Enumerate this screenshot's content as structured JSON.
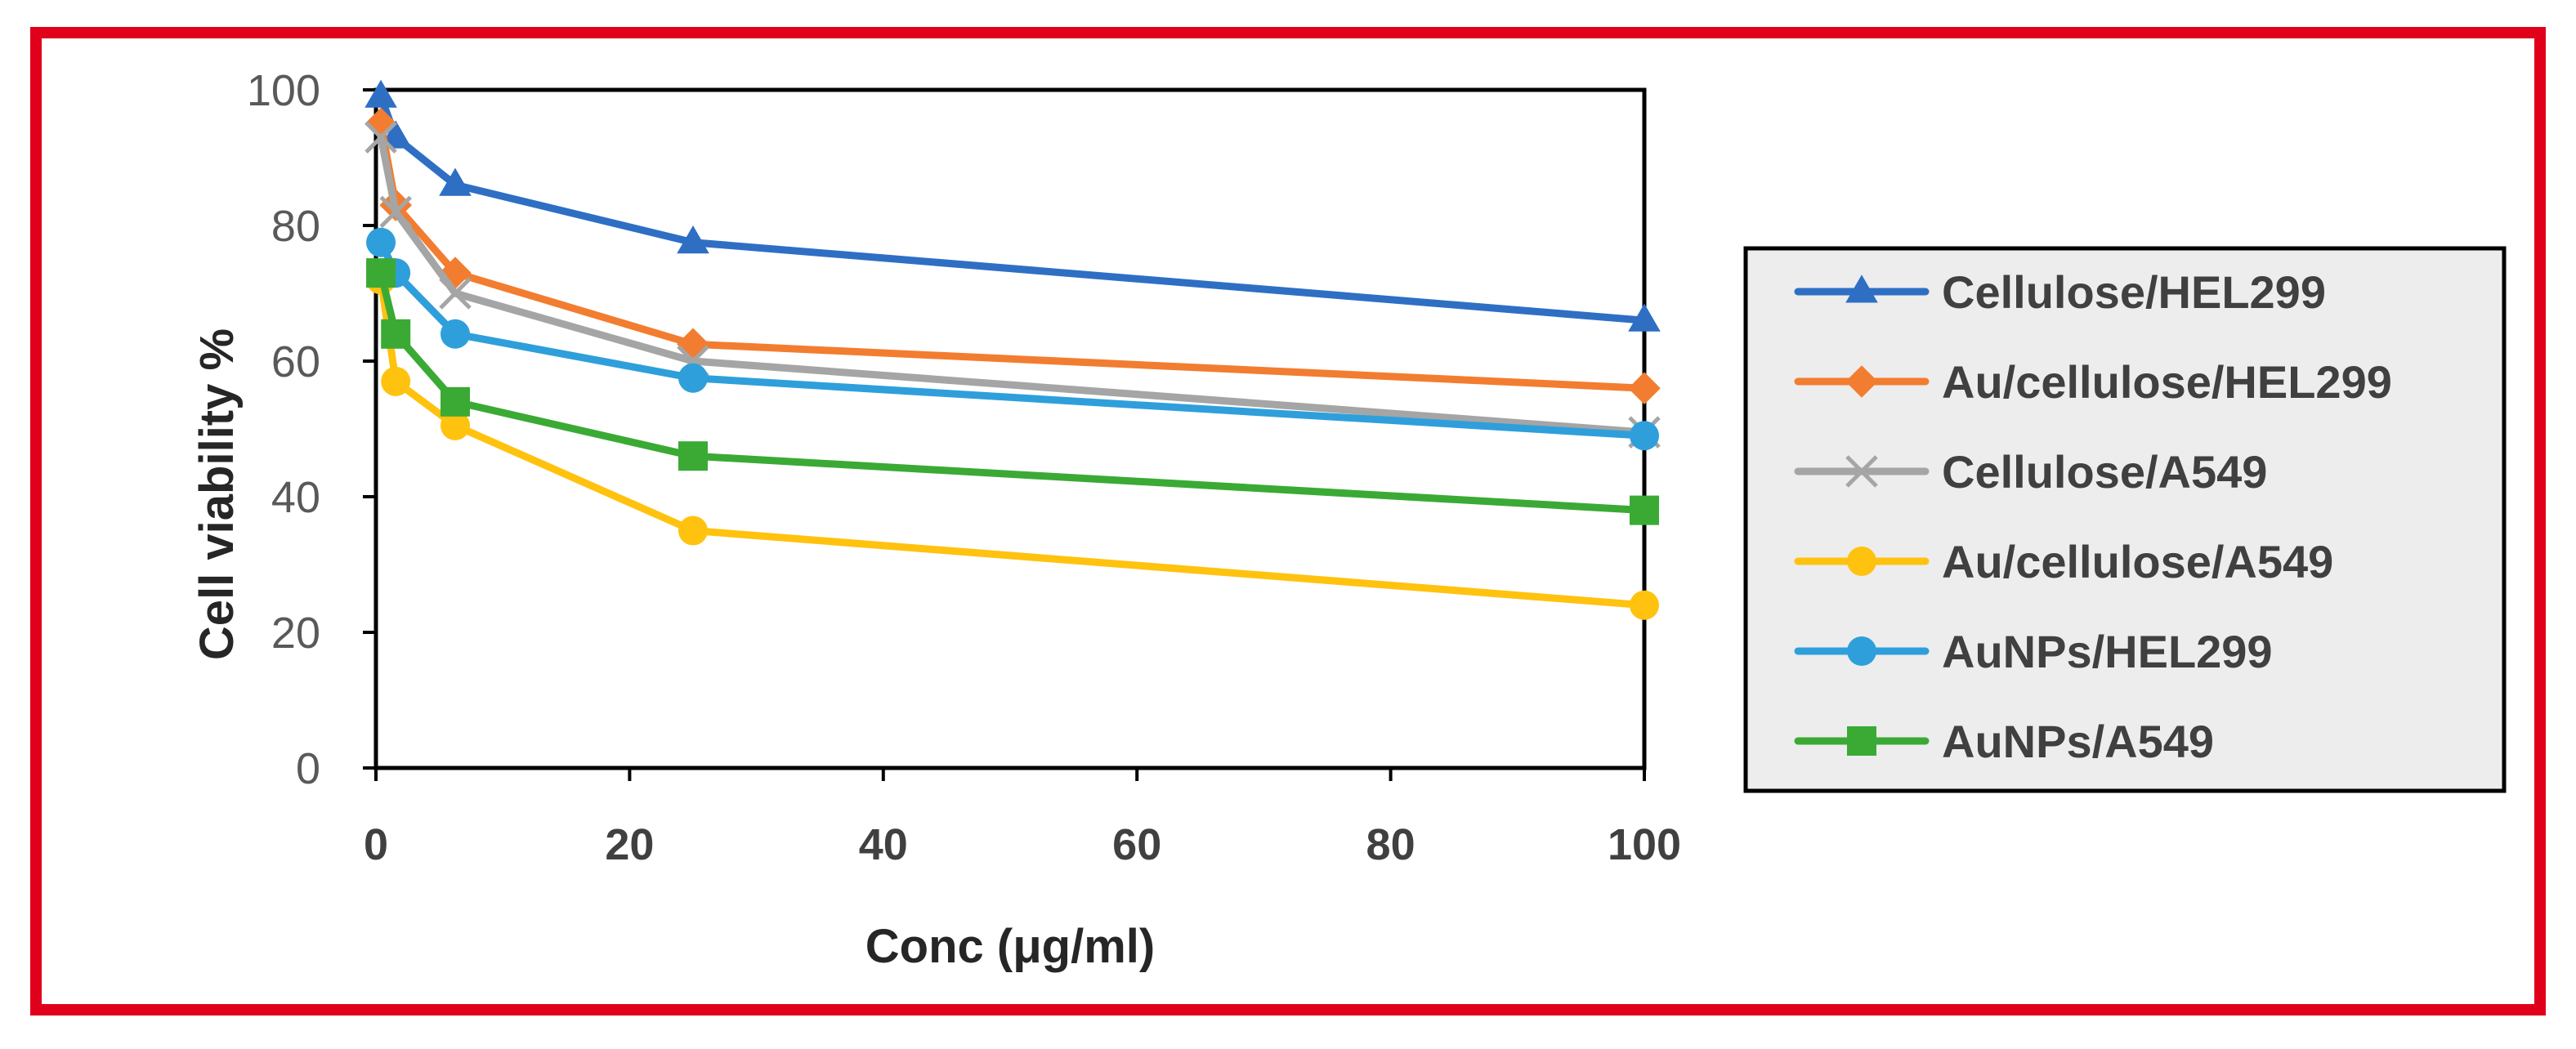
{
  "chart_data": {
    "type": "line",
    "title": "",
    "xlabel": "Conc (μg/ml)",
    "ylabel": "Cell viability %",
    "xlim": [
      0,
      100
    ],
    "ylim": [
      0,
      100
    ],
    "xticks": [
      0,
      20,
      40,
      60,
      80,
      100
    ],
    "yticks": [
      0,
      20,
      40,
      60,
      80,
      100
    ],
    "grid": false,
    "legend_position": "right",
    "x": [
      0.39,
      1.56,
      6.25,
      25,
      100
    ],
    "series": [
      {
        "name": "Cellulose/HEL299",
        "color": "#2e6fc4",
        "marker": "triangle",
        "values": [
          99,
          93,
          86,
          77.5,
          66
        ]
      },
      {
        "name": "Au/cellulose/HEL299",
        "color": "#f27d30",
        "marker": "diamond",
        "values": [
          95,
          83,
          73,
          62.5,
          56
        ]
      },
      {
        "name": "Cellulose/A549",
        "color": "#a5a5a5",
        "marker": "x",
        "values": [
          93,
          82,
          70,
          60,
          49.5
        ]
      },
      {
        "name": "Au/cellulose/A549",
        "color": "#ffc20e",
        "marker": "circle",
        "values": [
          72,
          57,
          50.5,
          35,
          24
        ]
      },
      {
        "name": "AuNPs/HEL299",
        "color": "#2e9fdb",
        "marker": "circle",
        "values": [
          77.5,
          73,
          64,
          57.5,
          49
        ]
      },
      {
        "name": "AuNPs/A549",
        "color": "#3aaa35",
        "marker": "square",
        "values": [
          73,
          64,
          54,
          46,
          38
        ]
      }
    ]
  },
  "frame_color": "#e0001b",
  "legend_bg": "#ededed"
}
